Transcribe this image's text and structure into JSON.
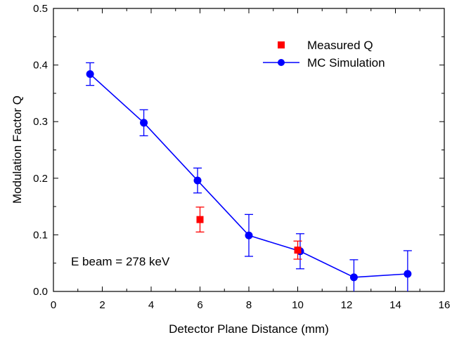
{
  "chart_data": {
    "type": "scatter",
    "title": "",
    "xlabel": "Detector Plane Distance (mm)",
    "ylabel": "Modulation Factor Q",
    "xlim": [
      0,
      16
    ],
    "ylim": [
      0,
      0.5
    ],
    "xticks": [
      "0",
      "2",
      "4",
      "6",
      "8",
      "10",
      "12",
      "14",
      "16"
    ],
    "yticks": [
      "0.0",
      "0.1",
      "0.2",
      "0.3",
      "0.4",
      "0.5"
    ],
    "grid": false,
    "legend_position": "top-right",
    "annotation": "E beam = 278 keV",
    "series": [
      {
        "name": "Measured Q",
        "color": "#ff0000",
        "marker": "square",
        "line": false,
        "x": [
          6.0,
          10.0
        ],
        "y": [
          0.127,
          0.073
        ],
        "err": [
          0.022,
          0.016
        ]
      },
      {
        "name": "MC Simulation",
        "color": "#0000ff",
        "marker": "circle",
        "line": true,
        "x": [
          1.5,
          3.7,
          5.9,
          8.0,
          10.1,
          12.3,
          14.5
        ],
        "y": [
          0.384,
          0.298,
          0.196,
          0.099,
          0.071,
          0.025,
          0.031
        ],
        "err": [
          0.02,
          0.023,
          0.022,
          0.037,
          0.031,
          0.031,
          0.041
        ]
      }
    ]
  }
}
